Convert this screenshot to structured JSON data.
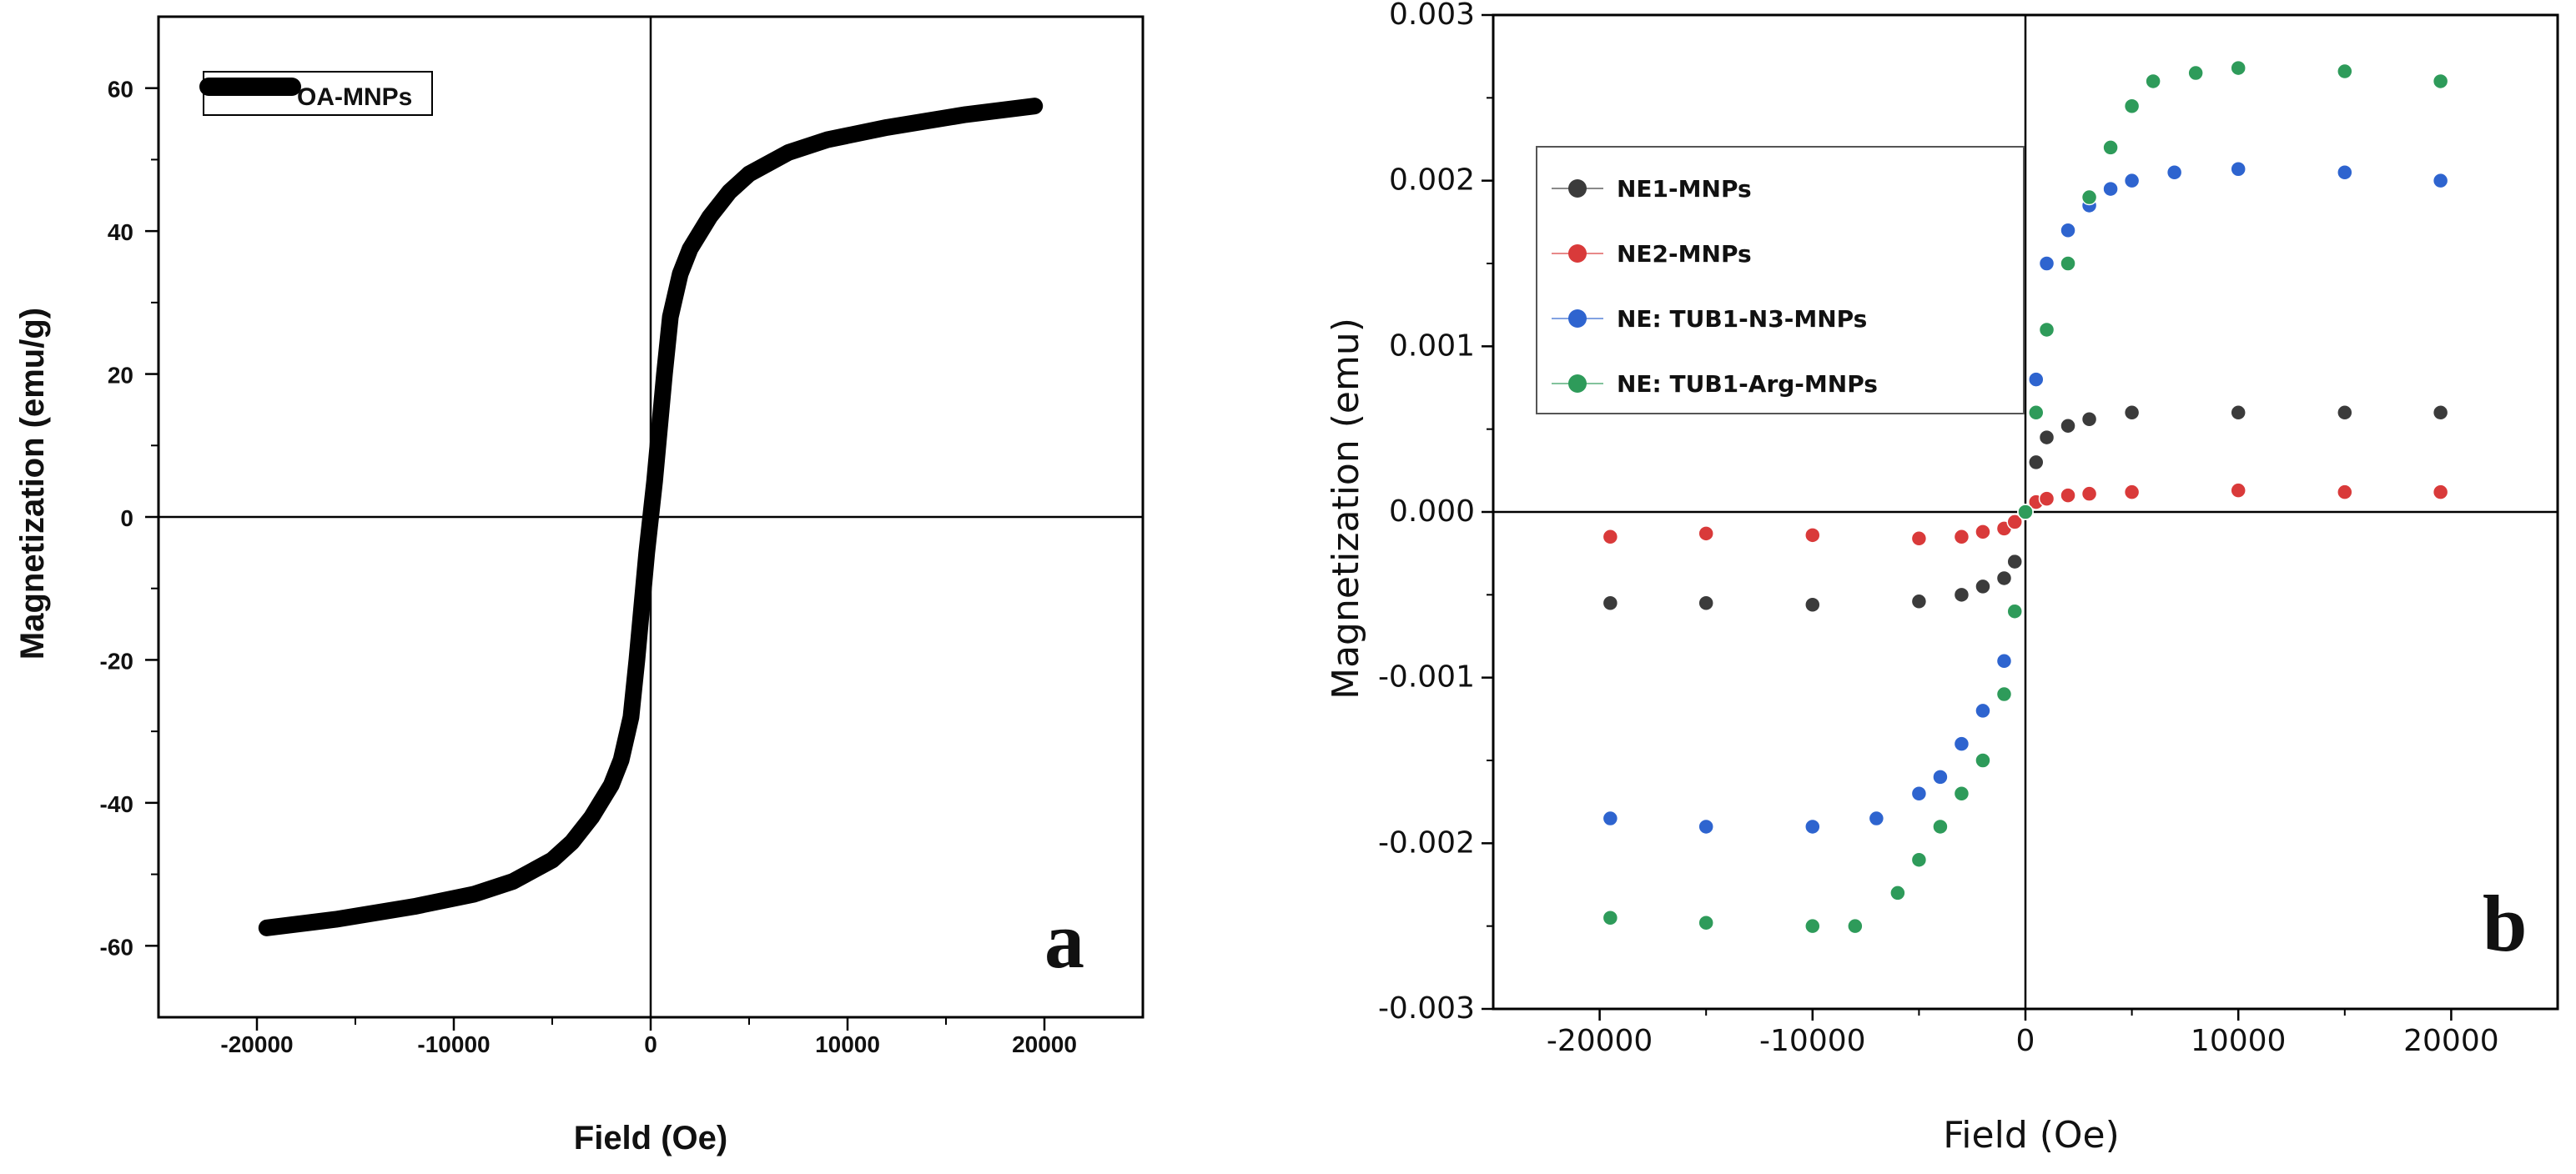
{
  "colors": {
    "oa": "#000000",
    "ne1": "#3b3b3b",
    "ne2": "#d93a3a",
    "tub_n3": "#2e64cf",
    "tub_arg": "#2e9b5a"
  },
  "chart_data": [
    {
      "id": "a",
      "type": "line",
      "panel_label": "a",
      "title": "",
      "xlabel": "Field (Oe)",
      "ylabel": "Magnetization (emu/g)",
      "xlim": [
        -25000,
        25000
      ],
      "ylim": [
        -70,
        70
      ],
      "xticks": [
        -20000,
        -10000,
        0,
        10000,
        20000
      ],
      "xtick_labels": [
        "-20000",
        "-10000",
        "0",
        "10000",
        "20000"
      ],
      "yticks": [
        -60,
        -40,
        -20,
        0,
        20,
        40,
        60
      ],
      "ytick_labels": [
        "-60",
        "-40",
        "-20",
        "0",
        "20",
        "40",
        "60"
      ],
      "legend": [
        "OA-MNPs"
      ],
      "series": [
        {
          "name": "OA-MNPs",
          "color_key": "oa",
          "x": [
            -19500,
            -16000,
            -12000,
            -9000,
            -7000,
            -5000,
            -4000,
            -3000,
            -2000,
            -1500,
            -1000,
            -700,
            -400,
            -200,
            0,
            200,
            400,
            700,
            1000,
            1500,
            2000,
            3000,
            4000,
            5000,
            7000,
            9000,
            12000,
            16000,
            19500
          ],
          "y": [
            -57.5,
            -56.3,
            -54.5,
            -52.8,
            -51.0,
            -48.0,
            -45.5,
            -42.0,
            -37.5,
            -34.0,
            -28.0,
            -20.0,
            -11.0,
            -5.0,
            0,
            5.0,
            11.0,
            20.0,
            28.0,
            34.0,
            37.5,
            42.0,
            45.5,
            48.0,
            51.0,
            52.8,
            54.5,
            56.3,
            57.5
          ]
        }
      ]
    },
    {
      "id": "b",
      "type": "scatter",
      "panel_label": "b",
      "title": "",
      "xlabel": "Field (Oe)",
      "ylabel": "Magnetization (emu)",
      "xlim": [
        -25000,
        25000
      ],
      "ylim": [
        -0.003,
        0.003
      ],
      "xticks": [
        -20000,
        -10000,
        0,
        10000,
        20000
      ],
      "xtick_labels": [
        "-20000",
        "-10000",
        "0",
        "10000",
        "20000"
      ],
      "yticks": [
        -0.003,
        -0.002,
        -0.001,
        0,
        0.001,
        0.002,
        0.003
      ],
      "ytick_labels": [
        "-0.003",
        "-0.002",
        "-0.001",
        "0.000",
        "0.001",
        "0.002",
        "0.003"
      ],
      "legend": [
        "NE1-MNPs",
        "NE2-MNPs",
        "NE: TUB1-N3-MNPs",
        "NE: TUB1-Arg-MNPs"
      ],
      "series": [
        {
          "name": "NE1-MNPs",
          "color_key": "ne1",
          "x": [
            -19500,
            -15000,
            -10000,
            -5000,
            -3000,
            -2000,
            -1000,
            -500,
            0,
            500,
            1000,
            2000,
            3000,
            5000,
            10000,
            15000,
            19500
          ],
          "y": [
            -0.00055,
            -0.00055,
            -0.00056,
            -0.00054,
            -0.0005,
            -0.00045,
            -0.0004,
            -0.0003,
            0,
            0.0003,
            0.00045,
            0.00052,
            0.00056,
            0.0006,
            0.0006,
            0.0006,
            0.0006
          ]
        },
        {
          "name": "NE2-MNPs",
          "color_key": "ne2",
          "x": [
            -19500,
            -15000,
            -10000,
            -5000,
            -3000,
            -2000,
            -1000,
            -500,
            0,
            500,
            1000,
            2000,
            3000,
            5000,
            10000,
            15000,
            19500
          ],
          "y": [
            -0.00015,
            -0.00013,
            -0.00014,
            -0.00016,
            -0.00015,
            -0.00012,
            -0.0001,
            -6e-05,
            0,
            6e-05,
            8e-05,
            0.0001,
            0.00011,
            0.00012,
            0.00013,
            0.00012,
            0.00012
          ]
        },
        {
          "name": "NE: TUB1-N3-MNPs",
          "color_key": "tub_n3",
          "x": [
            -19500,
            -15000,
            -10000,
            -7000,
            -5000,
            -4000,
            -3000,
            -2000,
            -1000,
            -500,
            0,
            500,
            1000,
            2000,
            3000,
            4000,
            5000,
            7000,
            10000,
            15000,
            19500
          ],
          "y": [
            -0.00185,
            -0.0019,
            -0.0019,
            -0.00185,
            -0.0017,
            -0.0016,
            -0.0014,
            -0.0012,
            -0.0009,
            -0.0006,
            0,
            0.0008,
            0.0015,
            0.0017,
            0.00185,
            0.00195,
            0.002,
            0.00205,
            0.00207,
            0.00205,
            0.002
          ]
        },
        {
          "name": "NE: TUB1-Arg-MNPs",
          "color_key": "tub_arg",
          "x": [
            -19500,
            -15000,
            -10000,
            -8000,
            -6000,
            -5000,
            -4000,
            -3000,
            -2000,
            -1000,
            -500,
            0,
            500,
            1000,
            2000,
            3000,
            4000,
            5000,
            6000,
            8000,
            10000,
            15000,
            19500
          ],
          "y": [
            -0.00245,
            -0.00248,
            -0.0025,
            -0.0025,
            -0.0023,
            -0.0021,
            -0.0019,
            -0.0017,
            -0.0015,
            -0.0011,
            -0.0006,
            0,
            0.0006,
            0.0011,
            0.0015,
            0.0019,
            0.0022,
            0.00245,
            0.0026,
            0.00265,
            0.00268,
            0.00266,
            0.0026
          ]
        }
      ]
    }
  ]
}
